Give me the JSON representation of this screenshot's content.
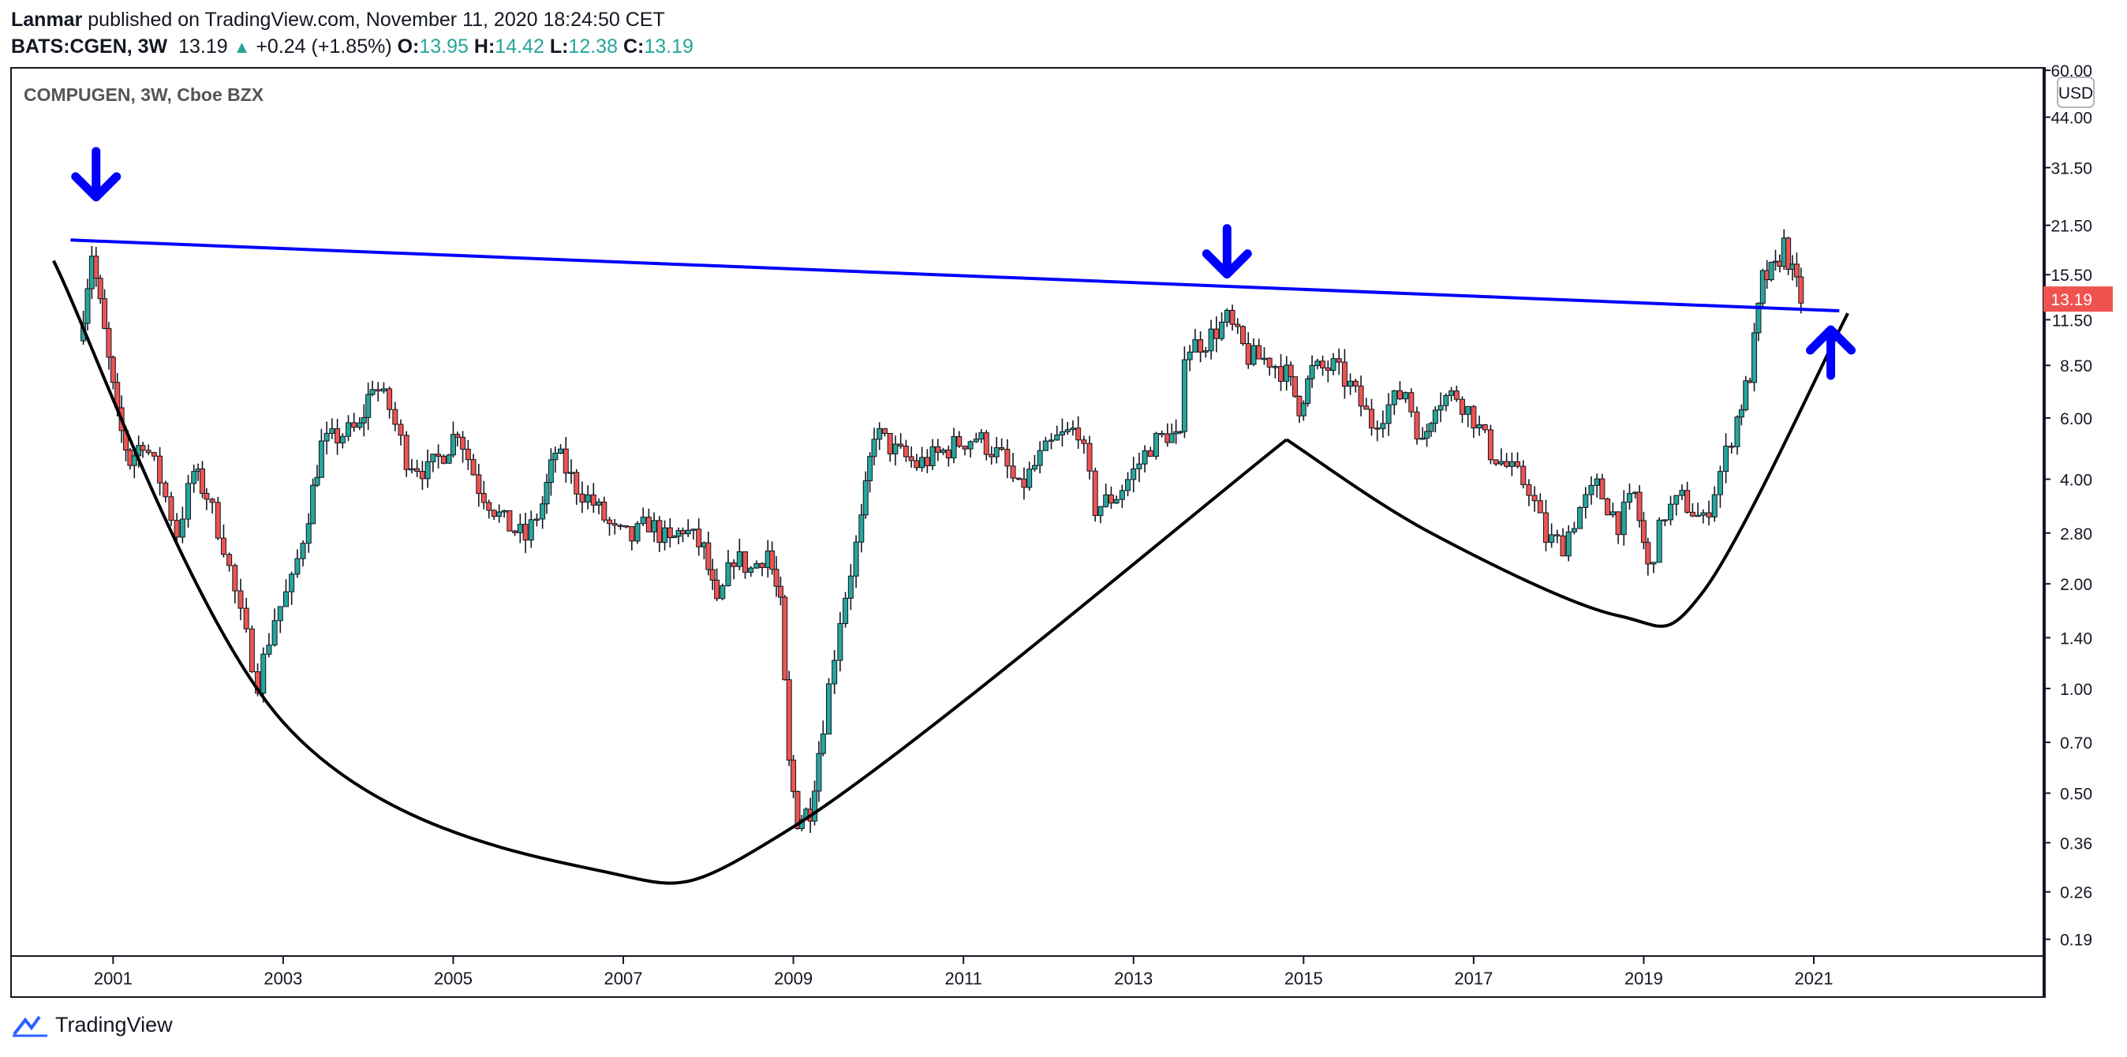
{
  "header": {
    "author": "Lanmar",
    "published": "published on TradingView.com, November 11, 2020 18:24:50 CET",
    "symbol": "BATS:CGEN, 3W",
    "last": "13.19",
    "change": "+0.24 (+1.85%)",
    "o_label": "O:",
    "o_value": "13.95",
    "h_label": "H:",
    "h_value": "14.42",
    "l_label": "L:",
    "l_value": "12.38",
    "c_label": "C:",
    "c_value": "13.19"
  },
  "chart_data": {
    "type": "candlestick",
    "title": "COMPUGEN, 3W, Cboe BZX",
    "currency_badge": "USD",
    "y_scale": "log",
    "ylim": [
      0.17,
      61
    ],
    "y_ticks": [
      "60.00",
      "44.00",
      "31.50",
      "21.50",
      "15.50",
      "11.50",
      "8.50",
      "6.00",
      "4.00",
      "2.80",
      "2.00",
      "1.40",
      "1.00",
      "0.70",
      "0.50",
      "0.36",
      "0.26",
      "0.19"
    ],
    "x_ticks": [
      "2001",
      "2003",
      "2005",
      "2007",
      "2009",
      "2011",
      "2013",
      "2015",
      "2017",
      "2019",
      "2021"
    ],
    "xlim": [
      1999.8,
      2023.7
    ],
    "last_price_label": "13.19",
    "colors": {
      "up": "#26a69a",
      "down": "#ef5350",
      "annotation": "#0000ff",
      "pattern": "#000000",
      "price_tag": "#ef5350"
    },
    "price_path": [
      [
        2000.6,
        10.0
      ],
      [
        2000.75,
        18.0
      ],
      [
        2000.9,
        10.5
      ],
      [
        2001.05,
        6.0
      ],
      [
        2001.2,
        4.5
      ],
      [
        2001.35,
        5.2
      ],
      [
        2001.55,
        4.0
      ],
      [
        2001.75,
        2.8
      ],
      [
        2001.95,
        4.2
      ],
      [
        2002.1,
        3.6
      ],
      [
        2002.3,
        2.6
      ],
      [
        2002.5,
        1.6
      ],
      [
        2002.7,
        1.05
      ],
      [
        2002.9,
        1.6
      ],
      [
        2003.1,
        2.0
      ],
      [
        2003.3,
        3.2
      ],
      [
        2003.45,
        5.0
      ],
      [
        2003.7,
        5.4
      ],
      [
        2003.9,
        5.6
      ],
      [
        2004.05,
        7.6
      ],
      [
        2004.25,
        6.4
      ],
      [
        2004.45,
        4.6
      ],
      [
        2004.7,
        4.2
      ],
      [
        2004.95,
        5.0
      ],
      [
        2005.05,
        5.6
      ],
      [
        2005.3,
        3.8
      ],
      [
        2005.6,
        3.0
      ],
      [
        2005.85,
        2.7
      ],
      [
        2006.05,
        3.4
      ],
      [
        2006.2,
        4.8
      ],
      [
        2006.45,
        3.8
      ],
      [
        2006.65,
        3.4
      ],
      [
        2006.9,
        2.8
      ],
      [
        2007.1,
        2.7
      ],
      [
        2007.3,
        3.0
      ],
      [
        2007.55,
        2.6
      ],
      [
        2007.7,
        2.9
      ],
      [
        2007.95,
        2.5
      ],
      [
        2008.1,
        1.7
      ],
      [
        2008.3,
        2.4
      ],
      [
        2008.5,
        2.2
      ],
      [
        2008.7,
        2.5
      ],
      [
        2008.85,
        1.7
      ],
      [
        2008.95,
        0.6
      ],
      [
        2009.05,
        0.42
      ],
      [
        2009.2,
        0.45
      ],
      [
        2009.35,
        0.8
      ],
      [
        2009.55,
        1.6
      ],
      [
        2009.8,
        3.0
      ],
      [
        2009.95,
        5.5
      ],
      [
        2010.2,
        4.8
      ],
      [
        2010.45,
        4.4
      ],
      [
        2010.7,
        4.7
      ],
      [
        2010.95,
        5.1
      ],
      [
        2011.15,
        5.3
      ],
      [
        2011.45,
        4.6
      ],
      [
        2011.65,
        3.7
      ],
      [
        2011.9,
        4.6
      ],
      [
        2012.1,
        5.2
      ],
      [
        2012.35,
        5.6
      ],
      [
        2012.55,
        3.3
      ],
      [
        2012.8,
        3.6
      ],
      [
        2013.0,
        4.2
      ],
      [
        2013.2,
        5.0
      ],
      [
        2013.4,
        5.4
      ],
      [
        2013.55,
        5.1
      ],
      [
        2013.6,
        9.5
      ],
      [
        2013.85,
        10.0
      ],
      [
        2014.1,
        11.5
      ],
      [
        2014.35,
        9.0
      ],
      [
        2014.6,
        8.8
      ],
      [
        2014.8,
        8.0
      ],
      [
        2014.95,
        6.5
      ],
      [
        2015.1,
        8.2
      ],
      [
        2015.35,
        8.4
      ],
      [
        2015.55,
        7.4
      ],
      [
        2015.8,
        5.8
      ],
      [
        2016.0,
        6.5
      ],
      [
        2016.2,
        7.2
      ],
      [
        2016.4,
        5.0
      ],
      [
        2016.55,
        6.8
      ],
      [
        2016.8,
        7.0
      ],
      [
        2017.0,
        6.0
      ],
      [
        2017.2,
        4.8
      ],
      [
        2017.45,
        4.2
      ],
      [
        2017.65,
        3.8
      ],
      [
        2017.85,
        2.7
      ],
      [
        2018.05,
        2.6
      ],
      [
        2018.25,
        3.3
      ],
      [
        2018.45,
        3.8
      ],
      [
        2018.7,
        3.0
      ],
      [
        2018.9,
        3.6
      ],
      [
        2019.05,
        2.2
      ],
      [
        2019.25,
        3.2
      ],
      [
        2019.45,
        3.5
      ],
      [
        2019.7,
        3.0
      ],
      [
        2019.9,
        4.2
      ],
      [
        2020.1,
        6.0
      ],
      [
        2020.25,
        8.0
      ],
      [
        2020.4,
        15.0
      ],
      [
        2020.55,
        16.0
      ],
      [
        2020.65,
        19.0
      ],
      [
        2020.75,
        15.5
      ],
      [
        2020.85,
        13.19
      ]
    ],
    "resistance_line": {
      "from": [
        2000.5,
        19.5
      ],
      "to": [
        2021.3,
        12.2
      ]
    },
    "pattern": {
      "cup": [
        [
          2000.3,
          17.0
        ],
        [
          2003.0,
          0.8
        ],
        [
          2006.7,
          0.3
        ],
        [
          2009.0,
          0.4
        ],
        [
          2014.8,
          5.2
        ]
      ],
      "handle": [
        [
          2014.8,
          5.2
        ],
        [
          2016.5,
          2.8
        ],
        [
          2018.7,
          1.62
        ],
        [
          2019.7,
          1.9
        ],
        [
          2021.4,
          12.0
        ]
      ]
    },
    "annotations": [
      {
        "type": "arrow-down",
        "x": 2000.8,
        "y": 30
      },
      {
        "type": "arrow-down",
        "x": 2014.1,
        "y": 18
      },
      {
        "type": "arrow-up",
        "x": 2021.2,
        "y": 9.3
      }
    ]
  },
  "footer": {
    "brand": "TradingView"
  }
}
